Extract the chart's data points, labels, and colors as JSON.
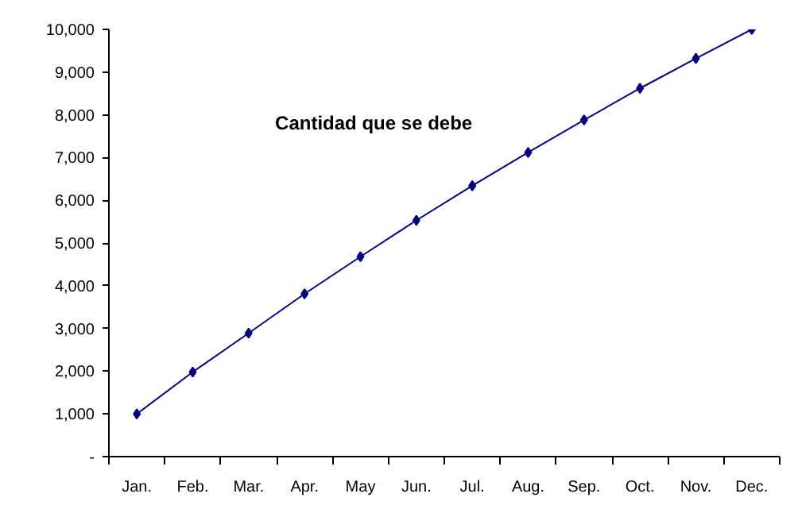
{
  "chart_data": {
    "type": "line",
    "categories": [
      "Jan.",
      "Feb.",
      "Mar.",
      "Apr.",
      "May",
      "Jun.",
      "Jul.",
      "Aug.",
      "Sep.",
      "Oct.",
      "Nov.",
      "Dec."
    ],
    "series": [
      {
        "name": "Cantidad que se debe",
        "color": "#000080",
        "values": [
          1000,
          1980,
          2890,
          3810,
          4680,
          5530,
          6340,
          7120,
          7880,
          8620,
          9320,
          10000
        ]
      }
    ],
    "ylim": [
      0,
      10000
    ],
    "yticks": [
      {
        "value": 0,
        "label": "-"
      },
      {
        "value": 1000,
        "label": "1,000"
      },
      {
        "value": 2000,
        "label": "2,000"
      },
      {
        "value": 3000,
        "label": "3,000"
      },
      {
        "value": 4000,
        "label": "4,000"
      },
      {
        "value": 5000,
        "label": "5,000"
      },
      {
        "value": 6000,
        "label": "6,000"
      },
      {
        "value": 7000,
        "label": "7,000"
      },
      {
        "value": 8000,
        "label": "8,000"
      },
      {
        "value": 9000,
        "label": "9,000"
      },
      {
        "value": 10000,
        "label": "10,000"
      }
    ],
    "grid": false,
    "marker": "diamond",
    "line_style": "solid"
  }
}
